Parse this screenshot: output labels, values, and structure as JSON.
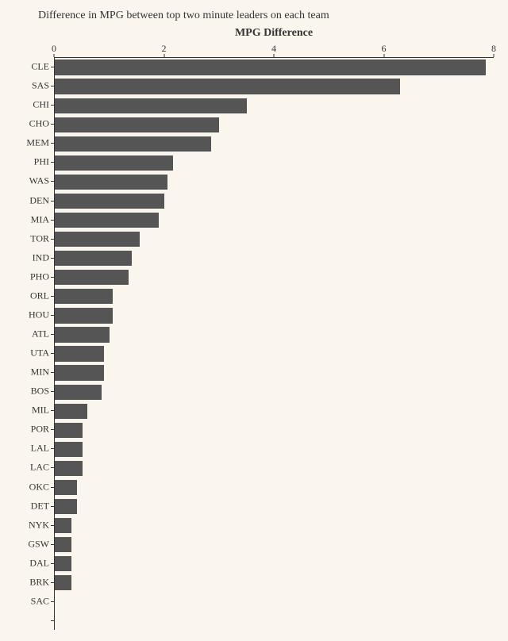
{
  "chart": {
    "type": "horizontal_bar",
    "title": "Difference in MPG between top two minute leaders on each team",
    "axis_title": "MPG Difference",
    "background_color": "#faf6ed",
    "bar_color": "#555555",
    "text_color": "#333333",
    "border_color": "#333333",
    "title_fontsize": 14,
    "axis_title_fontsize": 14,
    "tick_fontsize": 12,
    "xlim": [
      0,
      8
    ],
    "xtick_step": 2,
    "xticks": [
      0,
      2,
      4,
      6,
      8
    ],
    "bar_gap_ratio": 0.2,
    "categories": [
      "CLE",
      "SAS",
      "CHI",
      "CHO",
      "MEM",
      "PHI",
      "WAS",
      "DEN",
      "MIA",
      "TOR",
      "IND",
      "PHO",
      "ORL",
      "HOU",
      "ATL",
      "UTA",
      "MIN",
      "BOS",
      "MIL",
      "POR",
      "LAL",
      "LAC",
      "OKC",
      "DET",
      "NYK",
      "GSW",
      "DAL",
      "BRK",
      "SAC",
      ""
    ],
    "values": [
      7.85,
      6.3,
      3.5,
      3.0,
      2.85,
      2.15,
      2.05,
      2.0,
      1.9,
      1.55,
      1.4,
      1.35,
      1.05,
      1.05,
      1.0,
      0.9,
      0.9,
      0.85,
      0.6,
      0.5,
      0.5,
      0.5,
      0.4,
      0.4,
      0.3,
      0.3,
      0.3,
      0.3,
      0.0,
      0.0
    ]
  }
}
